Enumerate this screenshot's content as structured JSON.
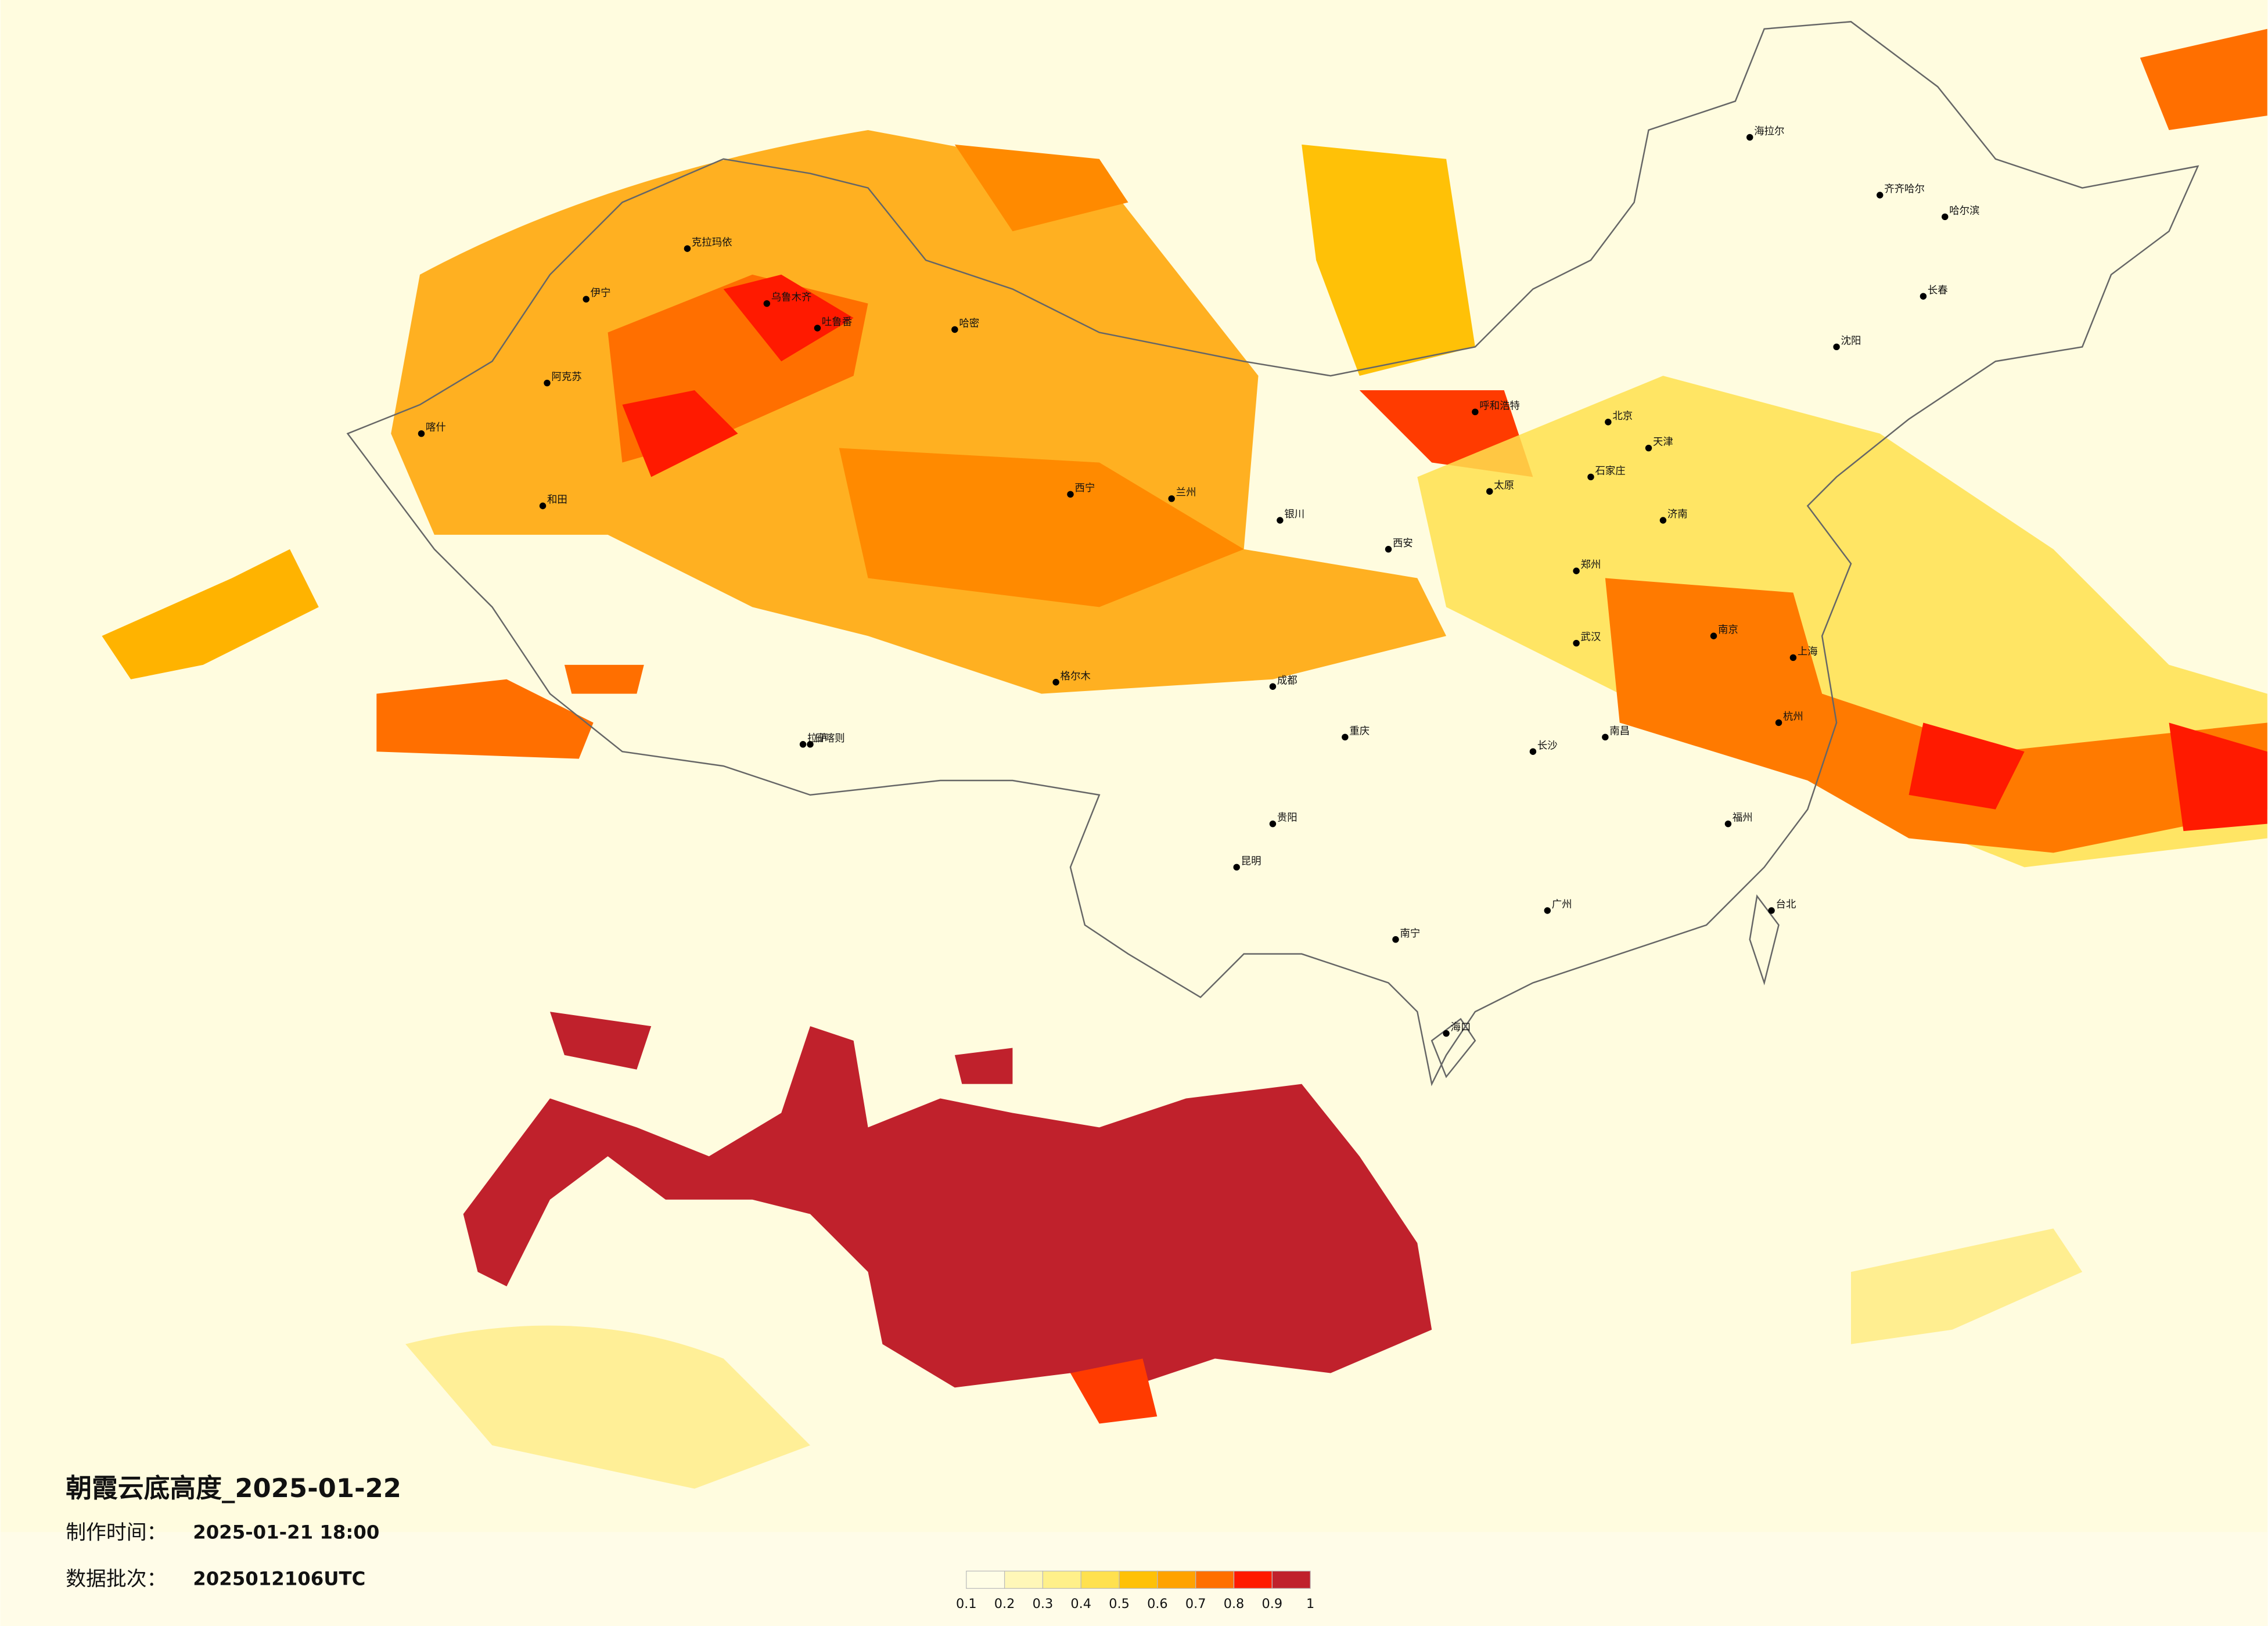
{
  "header": {
    "title": "朝霞云底高度_2025-01-22",
    "made_label": "制作时间：",
    "made_time": "2025-01-21 18:00",
    "batch_label": "数据批次：",
    "batch": "2025012106UTC"
  },
  "legend": {
    "colors": [
      "#fffde6",
      "#fff7b8",
      "#fff08a",
      "#ffe14f",
      "#ffc107",
      "#ffa200",
      "#ff6f00",
      "#ff1a00",
      "#c0212c"
    ],
    "ticks": [
      0.1,
      0.2,
      0.3,
      0.4,
      0.5,
      0.6,
      0.7,
      0.8,
      0.9,
      1
    ]
  },
  "map": {
    "cities": [
      "克拉玛依",
      "伊宁",
      "阿克苏",
      "喀什",
      "和田",
      "吐鲁番",
      "哈密",
      "乌鲁木齐",
      "格尔木",
      "西宁",
      "兰州",
      "银川",
      "呼和浩特",
      "北京",
      "天津",
      "石家庄",
      "太原",
      "济南",
      "郑州",
      "西安",
      "成都",
      "重庆",
      "贵阳",
      "昆明",
      "南宁",
      "长沙",
      "武汉",
      "南京",
      "上海",
      "杭州",
      "福州",
      "南昌",
      "广州",
      "海口",
      "哈尔滨",
      "长春",
      "沈阳",
      "拉萨",
      "日喀则",
      "台北",
      "海拉尔",
      "齐齐哈尔"
    ]
  }
}
